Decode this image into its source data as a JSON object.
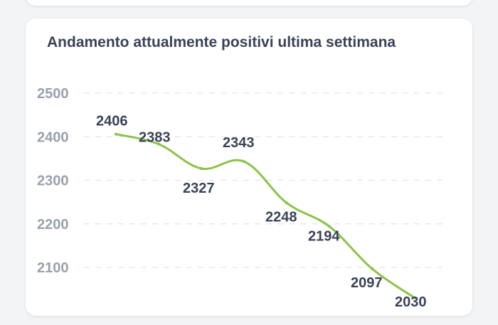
{
  "chart_data": {
    "type": "line",
    "title": "Andamento attualmente positivi ultima settimana",
    "xlabel": "",
    "ylabel": "",
    "x": [
      1,
      2,
      3,
      4,
      5,
      6,
      7,
      8
    ],
    "values": [
      2406,
      2383,
      2327,
      2343,
      2248,
      2194,
      2097,
      2030
    ],
    "data_labels": [
      "2406",
      "2383",
      "2327",
      "2343",
      "2248",
      "2194",
      "2097",
      "2030"
    ],
    "ylim": [
      2000,
      2500
    ],
    "yticks": [
      2500,
      2400,
      2300,
      2200,
      2100
    ],
    "ytick_labels": [
      "2500",
      "2400",
      "2300",
      "2200",
      "2100"
    ],
    "grid": true,
    "line_color": "#8bc34a"
  }
}
